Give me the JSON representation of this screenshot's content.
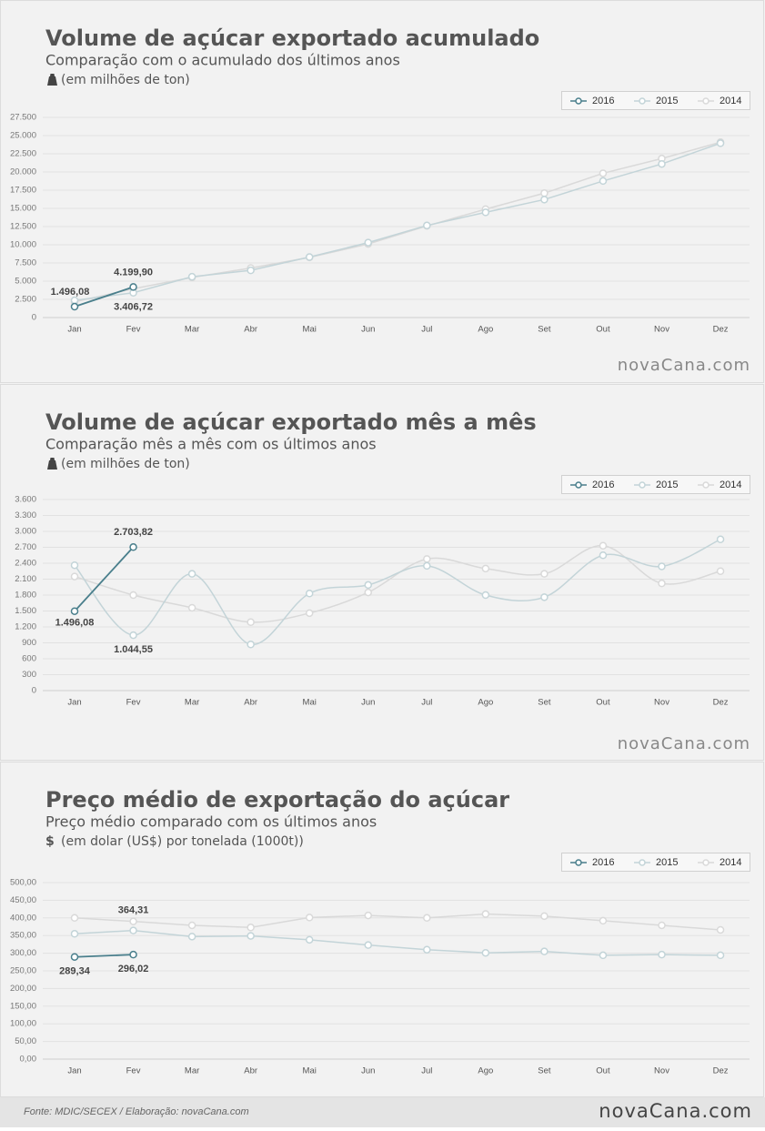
{
  "chart_data": [
    {
      "type": "line",
      "title": "Volume de açúcar exportado acumulado",
      "subtitle": "Comparação com o acumulado dos últimos anos",
      "unit": "(em milhões de ton)",
      "categories": [
        "Jan",
        "Fev",
        "Mar",
        "Abr",
        "Mai",
        "Jun",
        "Jul",
        "Ago",
        "Set",
        "Out",
        "Nov",
        "Dez"
      ],
      "series": [
        {
          "name": "2016",
          "color": "#4a7f8c",
          "values": [
            1496.08,
            4199.9,
            null,
            null,
            null,
            null,
            null,
            null,
            null,
            null,
            null,
            null
          ],
          "value_labels": [
            "1.496,08",
            "4.199,90",
            null,
            null,
            null,
            null,
            null,
            null,
            null,
            null,
            null,
            null
          ]
        },
        {
          "name": "2015",
          "color": "#c3d4d8",
          "values": [
            2362.17,
            3406.72,
            5606,
            6480,
            8310,
            10300,
            12650,
            14450,
            16210,
            18760,
            21100,
            23950
          ],
          "value_labels": [
            null,
            "3.406,72",
            null,
            null,
            null,
            null,
            null,
            null,
            null,
            null,
            null,
            null
          ]
        },
        {
          "name": "2014",
          "color": "#d9d9d9",
          "values": [
            2150,
            3950,
            5510,
            6800,
            8260,
            10110,
            12590,
            14890,
            17090,
            19820,
            21840,
            24090
          ]
        }
      ],
      "ylim": [
        0,
        27500
      ],
      "yticks": [
        0,
        {
          "value": 2500,
          "label": "2.500"
        },
        {
          "value": 5000,
          "label": "5.000"
        },
        {
          "value": 7500,
          "label": "7.500"
        },
        {
          "value": 10000,
          "label": "10.000"
        },
        {
          "value": 12500,
          "label": "12.500"
        },
        {
          "value": 15000,
          "label": "15.000"
        },
        {
          "value": 17500,
          "label": "17.500"
        },
        {
          "value": 20000,
          "label": "20.000"
        },
        {
          "value": 22500,
          "label": "22.500"
        },
        {
          "value": 25000,
          "label": "25.000"
        },
        {
          "value": 27500,
          "label": "27.500"
        }
      ],
      "grid": true,
      "smooth": false,
      "legend": "top-right",
      "watermark": "novaCana.com"
    },
    {
      "type": "line",
      "title": "Volume de açúcar exportado mês a mês",
      "subtitle": "Comparação mês a mês com os últimos anos",
      "unit": "(em milhões de ton)",
      "categories": [
        "Jan",
        "Fev",
        "Mar",
        "Abr",
        "Mai",
        "Jun",
        "Jul",
        "Ago",
        "Set",
        "Out",
        "Nov",
        "Dez"
      ],
      "series": [
        {
          "name": "2016",
          "color": "#4a7f8c",
          "values": [
            1496.08,
            2703.82,
            null,
            null,
            null,
            null,
            null,
            null,
            null,
            null,
            null,
            null
          ],
          "value_labels": [
            "1.496,08",
            "2.703,82",
            null,
            null,
            null,
            null,
            null,
            null,
            null,
            null,
            null,
            null
          ]
        },
        {
          "name": "2015",
          "color": "#c3d4d8",
          "values": [
            2362.17,
            1044.55,
            2200,
            870,
            1830,
            1990,
            2350,
            1800,
            1760,
            2550,
            2340,
            2850
          ],
          "value_labels": [
            null,
            "1.044,55",
            null,
            null,
            null,
            null,
            null,
            null,
            null,
            null,
            null,
            null
          ]
        },
        {
          "name": "2014",
          "color": "#d9d9d9",
          "values": [
            2150,
            1800,
            1560,
            1290,
            1460,
            1850,
            2480,
            2300,
            2200,
            2730,
            2020,
            2250
          ]
        }
      ],
      "ylim": [
        0,
        3600
      ],
      "yticks": [
        0,
        300,
        600,
        900,
        {
          "value": 1200,
          "label": "1.200"
        },
        {
          "value": 1500,
          "label": "1.500"
        },
        {
          "value": 1800,
          "label": "1.800"
        },
        {
          "value": 2100,
          "label": "2.100"
        },
        {
          "value": 2400,
          "label": "2.400"
        },
        {
          "value": 2700,
          "label": "2.700"
        },
        {
          "value": 3000,
          "label": "3.000"
        },
        {
          "value": 3300,
          "label": "3.300"
        },
        {
          "value": 3600,
          "label": "3.600"
        }
      ],
      "grid": true,
      "smooth": true,
      "legend": "top-right",
      "watermark": "novaCana.com"
    },
    {
      "type": "line",
      "title": "Preço médio de exportação do açúcar",
      "subtitle": "Preço médio comparado com os últimos anos",
      "unit_symbol": "$",
      "unit": "(em dolar (US$) por tonelada (1000t))",
      "categories": [
        "Jan",
        "Fev",
        "Mar",
        "Abr",
        "Mai",
        "Jun",
        "Jul",
        "Ago",
        "Set",
        "Out",
        "Nov",
        "Dez"
      ],
      "series": [
        {
          "name": "2016",
          "color": "#4a7f8c",
          "values": [
            289.34,
            296.02,
            null,
            null,
            null,
            null,
            null,
            null,
            null,
            null,
            null,
            null
          ],
          "value_labels": [
            "289,34",
            "296,02",
            null,
            null,
            null,
            null,
            null,
            null,
            null,
            null,
            null,
            null
          ]
        },
        {
          "name": "2015",
          "color": "#c3d4d8",
          "values": [
            355,
            364.31,
            347,
            349,
            338,
            323,
            310,
            301,
            305,
            294,
            296,
            294
          ],
          "value_labels": [
            null,
            "364,31",
            null,
            null,
            null,
            null,
            null,
            null,
            null,
            null,
            null,
            null
          ]
        },
        {
          "name": "2014",
          "color": "#d9d9d9",
          "values": [
            400,
            390,
            379,
            373,
            401,
            407,
            400,
            411,
            405,
            392,
            379,
            366
          ]
        }
      ],
      "ylim": [
        0,
        500
      ],
      "yticks": [
        {
          "value": 0,
          "label": "0,00"
        },
        {
          "value": 50,
          "label": "50,00"
        },
        {
          "value": 100,
          "label": "100,00"
        },
        {
          "value": 150,
          "label": "150,00"
        },
        {
          "value": 200,
          "label": "200,00"
        },
        {
          "value": 250,
          "label": "250,00"
        },
        {
          "value": 300,
          "label": "300,00"
        },
        {
          "value": 350,
          "label": "350,00"
        },
        {
          "value": 400,
          "label": "400,00"
        },
        {
          "value": 450,
          "label": "450,00"
        },
        {
          "value": 500,
          "label": "500,00"
        }
      ],
      "grid": true,
      "smooth": false,
      "legend": "top-right"
    }
  ],
  "footer": {
    "source": "Fonte: MDIC/SECEX / Elaboração: novaCana.com",
    "logo": "novaCana.com"
  }
}
